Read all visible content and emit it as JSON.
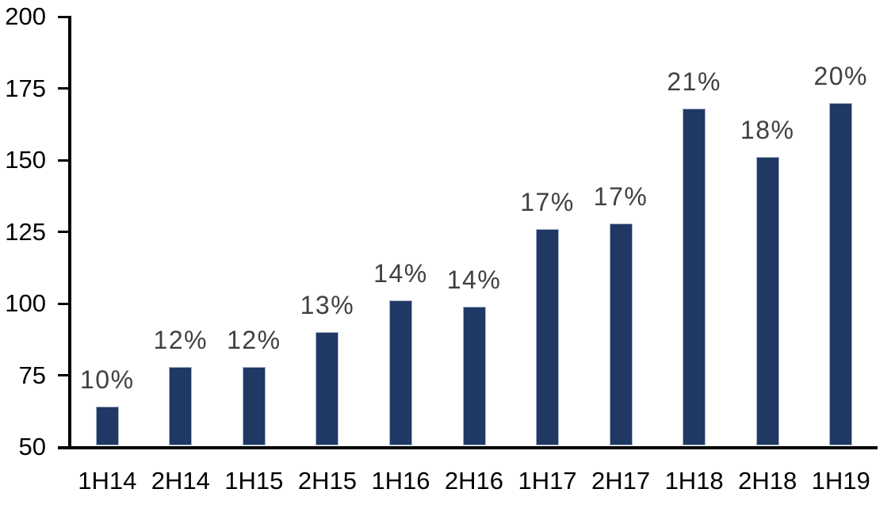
{
  "chart_data": {
    "type": "bar",
    "title": "",
    "xlabel": "",
    "ylabel": "",
    "categories": [
      "1H14",
      "2H14",
      "1H15",
      "2H15",
      "1H16",
      "2H16",
      "1H17",
      "2H17",
      "1H18",
      "2H18",
      "1H19"
    ],
    "values": [
      64,
      78,
      78,
      90,
      101,
      99,
      126,
      128,
      168,
      151,
      170
    ],
    "data_labels": [
      "10%",
      "12%",
      "12%",
      "13%",
      "14%",
      "14%",
      "17%",
      "17%",
      "21%",
      "18%",
      "20%"
    ],
    "ylim": [
      50,
      200
    ],
    "yticks": [
      50,
      75,
      100,
      125,
      150,
      175,
      200
    ],
    "grid": false,
    "legend": false,
    "data_labels_position": "outside-end",
    "colors": {
      "bar_fill": "#1f3864",
      "bar_border": "#a9b5c9",
      "data_label": "#404040",
      "axis_text": "#000000",
      "axis_line": "#000000",
      "background": "#ffffff"
    }
  }
}
